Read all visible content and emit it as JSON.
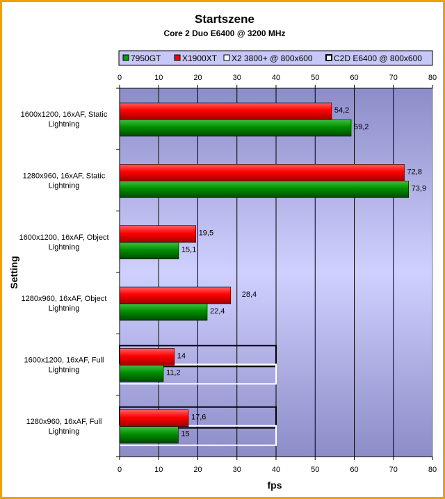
{
  "chart_data": {
    "type": "bar",
    "orientation": "horizontal",
    "title": "Startszene",
    "subtitle": "Core 2 Duo E6400 @ 3200 MHz",
    "xlabel": "fps",
    "ylabel": "Setting",
    "xlim": [
      0,
      80
    ],
    "xticks": [
      "0",
      "10",
      "20",
      "30",
      "40",
      "50",
      "60",
      "70",
      "80"
    ],
    "grid": true,
    "legend_position": "top",
    "categories": [
      [
        "1600x1200, 16xAF, Static",
        "Lightning"
      ],
      [
        "1280x960, 16xAF, Static",
        "Lightning"
      ],
      [
        "1600x1200, 16xAF, Object",
        "Lightning"
      ],
      [
        "1280x960, 16xAF, Object",
        "Lightning"
      ],
      [
        "1600x1200, 16xAF, Full",
        "Lightning"
      ],
      [
        "1280x960, 16xAF, Full",
        "Lightning"
      ]
    ],
    "series": [
      {
        "name": "7950GT",
        "color": "#00a000",
        "values": [
          59.2,
          73.9,
          15.1,
          22.4,
          11.2,
          15
        ],
        "labels": [
          "59,2",
          "73,9",
          "15,1",
          "22,4",
          "11,2",
          "15"
        ]
      },
      {
        "name": "X1900XT",
        "color": "#ff0000",
        "values": [
          54.2,
          72.8,
          19.5,
          28.4,
          14,
          17.6
        ],
        "labels": [
          "54,2",
          "72,8",
          "19,5",
          "28,4",
          "14",
          "17,6"
        ]
      },
      {
        "name": "X2 3800+ @ 800x600",
        "color": "#ffffff",
        "values": [
          null,
          null,
          null,
          null,
          40,
          40
        ],
        "labels": [
          "",
          "",
          "",
          "",
          "",
          ""
        ]
      },
      {
        "name": "C2D E6400 @ 800x600",
        "color": "#000000",
        "values": [
          null,
          null,
          null,
          null,
          40,
          40
        ],
        "labels": [
          "",
          "",
          "",
          "",
          "",
          ""
        ]
      }
    ]
  }
}
